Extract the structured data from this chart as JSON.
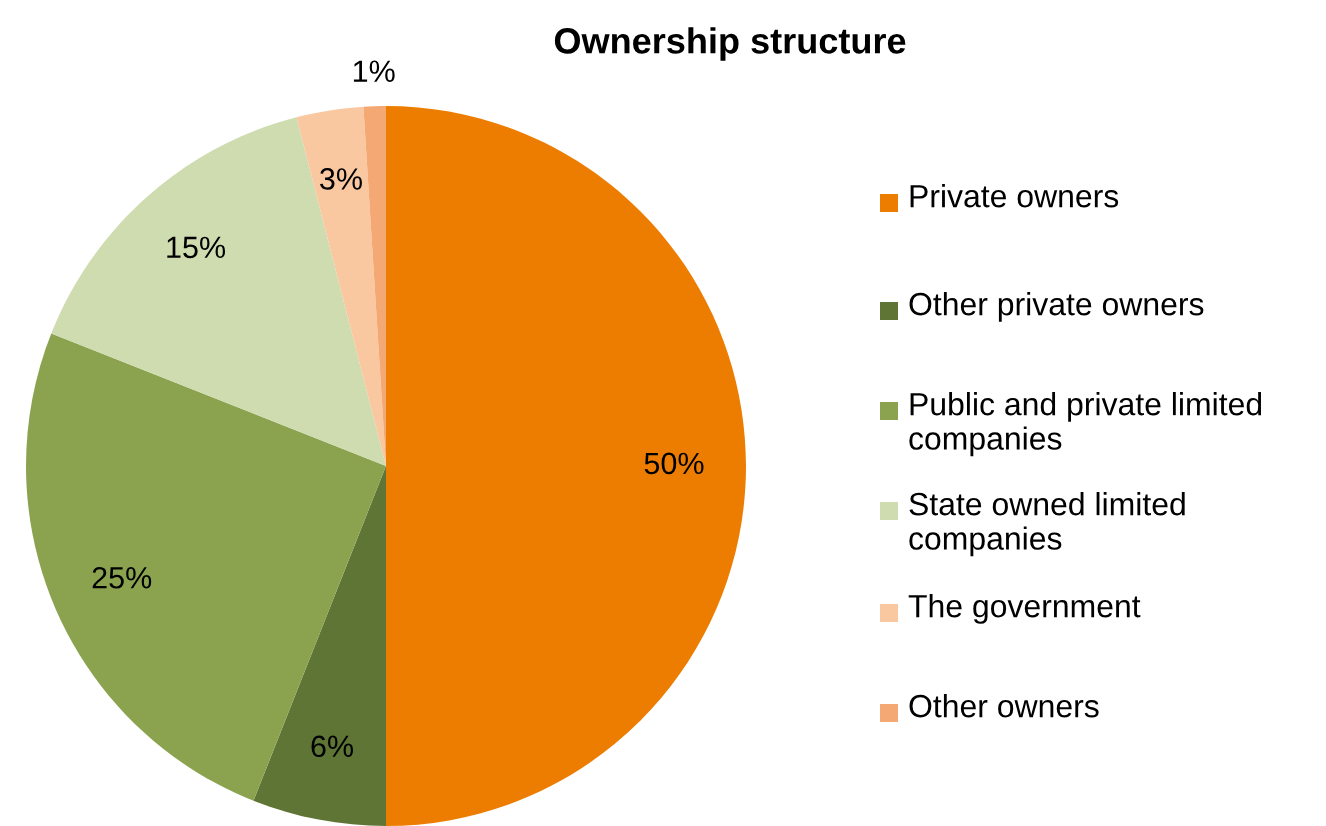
{
  "chart_data": {
    "type": "pie",
    "title": "Ownership structure",
    "categories": [
      "Private owners",
      "Other private owners",
      "Public and private limited companies",
      "State owned limited companies",
      "The government",
      "Other owners"
    ],
    "values": [
      50,
      6,
      25,
      15,
      3,
      1
    ],
    "colors": [
      "#ed7d00",
      "#5f7536",
      "#8ba34f",
      "#cfdcb0",
      "#f9c8a0",
      "#f4a873"
    ],
    "value_labels": [
      "50%",
      "6%",
      "25%",
      "15%",
      "3%",
      "1%"
    ],
    "legend": "right"
  }
}
